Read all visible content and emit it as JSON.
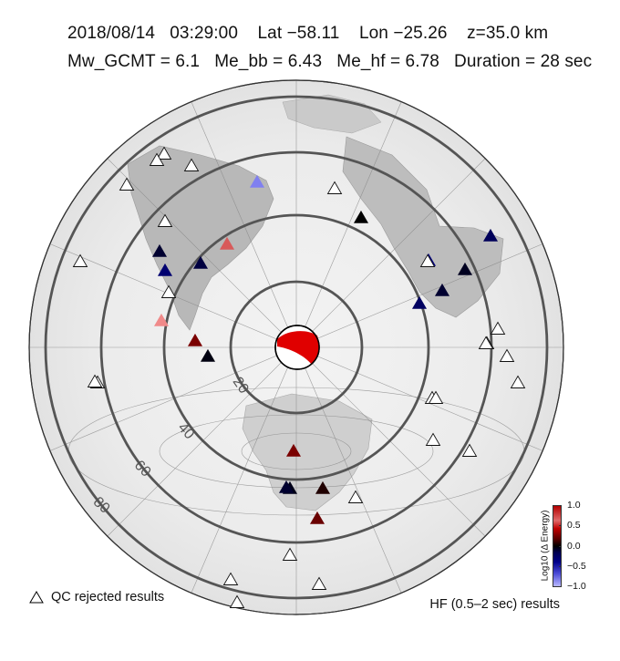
{
  "header": {
    "line1": "2018/08/14   03:29:00    Lat −58.11    Lon −25.26    z=35.0 km",
    "line2": "Mw_GCMT = 6.1   Me_bb = 6.43   Me_hf = 6.78   Duration = 28 sec"
  },
  "map": {
    "projection": "azimuthal-equidistant",
    "range_circles_deg": [
      20,
      40,
      60,
      80
    ],
    "range_labels": [
      "20",
      "40",
      "60",
      "80"
    ],
    "beachball_colors": {
      "compression": "#e00000",
      "dilatation": "#ffffff"
    },
    "stations": [
      {
        "id": "s1",
        "color": "#ffffff",
        "qc_rejected": true
      },
      {
        "id": "s2",
        "color": "#ffffff",
        "qc_rejected": true
      },
      {
        "id": "s3",
        "color": "#ffffff",
        "qc_rejected": true
      },
      {
        "id": "s4",
        "color": "#ffffff",
        "qc_rejected": true
      },
      {
        "id": "s5",
        "color": "#8080f0",
        "qc_rejected": false
      },
      {
        "id": "s6",
        "color": "#ffffff",
        "qc_rejected": true
      },
      {
        "id": "s7",
        "color": "#000000",
        "qc_rejected": false
      },
      {
        "id": "s8",
        "color": "#ffffff",
        "qc_rejected": true
      },
      {
        "id": "s9",
        "color": "#d85a5a",
        "qc_rejected": false
      },
      {
        "id": "s10",
        "color": "#000030",
        "qc_rejected": false
      },
      {
        "id": "s11",
        "color": "#000070",
        "qc_rejected": false
      },
      {
        "id": "s12",
        "color": "#000040",
        "qc_rejected": false
      },
      {
        "id": "s13",
        "color": "#ffffff",
        "qc_rejected": true
      },
      {
        "id": "s14",
        "color": "#ffffff",
        "qc_rejected": true
      },
      {
        "id": "s15",
        "color": "#f08a8a",
        "qc_rejected": false
      },
      {
        "id": "s16",
        "color": "#7a0000",
        "qc_rejected": false
      },
      {
        "id": "s17",
        "color": "#000010",
        "qc_rejected": false
      },
      {
        "id": "s18",
        "color": "#ffffff",
        "qc_rejected": true
      },
      {
        "id": "s19",
        "color": "#ffffff",
        "qc_rejected": true
      },
      {
        "id": "s20",
        "color": "#ffffff",
        "qc_rejected": true
      },
      {
        "id": "s21",
        "color": "#000080",
        "qc_rejected": false
      },
      {
        "id": "s22",
        "color": "#00005a",
        "qc_rejected": false
      },
      {
        "id": "s23",
        "color": "#ffffff",
        "qc_rejected": true
      },
      {
        "id": "s24",
        "color": "#000020",
        "qc_rejected": false
      },
      {
        "id": "s25",
        "color": "#000030",
        "qc_rejected": false
      },
      {
        "id": "s26",
        "color": "#000060",
        "qc_rejected": false
      },
      {
        "id": "s27",
        "color": "#ffffff",
        "qc_rejected": true
      },
      {
        "id": "s28",
        "color": "#ffffff",
        "qc_rejected": true
      },
      {
        "id": "s29",
        "color": "#ffffff",
        "qc_rejected": true
      },
      {
        "id": "s30",
        "color": "#ffffff",
        "qc_rejected": true
      },
      {
        "id": "s31",
        "color": "#ffffff",
        "qc_rejected": true
      },
      {
        "id": "s32",
        "color": "#ffffff",
        "qc_rejected": true
      },
      {
        "id": "s33",
        "color": "#ffffff",
        "qc_rejected": true
      },
      {
        "id": "s34",
        "color": "#7a0000",
        "qc_rejected": false
      },
      {
        "id": "s35",
        "color": "#000018",
        "qc_rejected": false
      },
      {
        "id": "s36",
        "color": "#000030",
        "qc_rejected": false
      },
      {
        "id": "s37",
        "color": "#200000",
        "qc_rejected": false
      },
      {
        "id": "s38",
        "color": "#ffffff",
        "qc_rejected": true
      },
      {
        "id": "s39",
        "color": "#6a0000",
        "qc_rejected": false
      },
      {
        "id": "s40",
        "color": "#ffffff",
        "qc_rejected": true
      },
      {
        "id": "s41",
        "color": "#ffffff",
        "qc_rejected": true
      },
      {
        "id": "s42",
        "color": "#ffffff",
        "qc_rejected": true
      },
      {
        "id": "s43",
        "color": "#ffffff",
        "qc_rejected": true
      },
      {
        "id": "s44",
        "color": "#ffffff",
        "qc_rejected": true
      }
    ]
  },
  "legend": {
    "qc_label": "QC rejected results",
    "hf_label": "HF (0.5–2 sec) results"
  },
  "colorbar": {
    "title": "Log10 (Δ Energy)",
    "ticks": [
      "1.0",
      "0.5",
      "0.0",
      "−0.5",
      "−1.0"
    ],
    "range": [
      -1.0,
      1.0
    ]
  }
}
